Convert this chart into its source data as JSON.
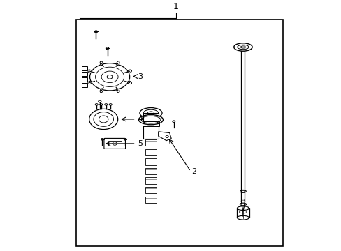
{
  "bg_color": "#ffffff",
  "border_color": "#000000",
  "line_color": "#000000",
  "border": [
    0.12,
    0.02,
    0.95,
    0.93
  ],
  "figsize": [
    4.89,
    3.6
  ],
  "dpi": 100
}
